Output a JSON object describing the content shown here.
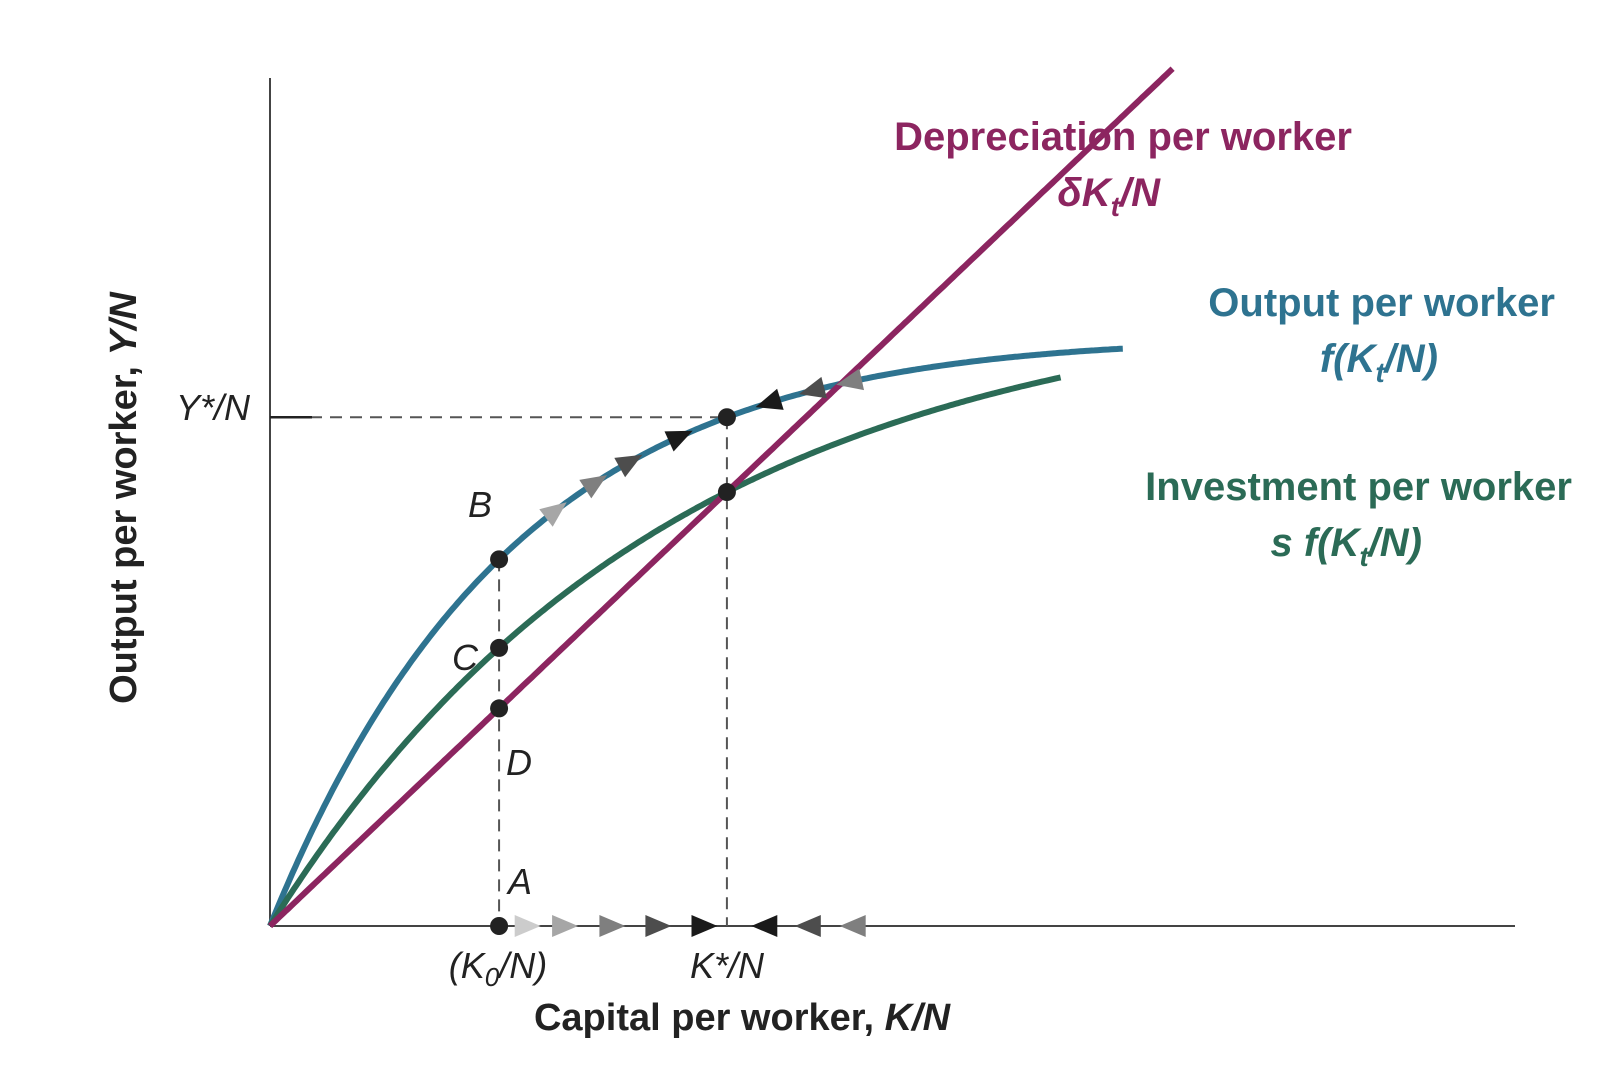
{
  "colors": {
    "output": "#2e7390",
    "investment": "#2b6b56",
    "depreciation": "#8c2560",
    "axis": "#444444",
    "point": "#222222",
    "arrow_shades": [
      "#cccccc",
      "#a6a6a6",
      "#7f7f7f",
      "#4d4d4d",
      "#1a1a1a"
    ]
  },
  "chart_data": {
    "type": "line",
    "xlim": [
      0,
      1
    ],
    "ylim": [
      0,
      1
    ],
    "axes": {
      "xlabel_text": "Capital per worker, ",
      "xlabel_var": "K/N",
      "ylabel_text": "Output per worker, ",
      "ylabel_var": "Y/N"
    },
    "series": [
      {
        "key": "output",
        "name_line1": "Output per worker",
        "name_line2_pre": "f(K",
        "name_line2_sub": "t",
        "name_line2_post": "/N)",
        "func": "output"
      },
      {
        "key": "investment",
        "name_line1": "Investment per worker",
        "name_line2_pre": "s f(K",
        "name_line2_sub": "t",
        "name_line2_post": "/N)",
        "func": "investment"
      },
      {
        "key": "depreciation",
        "name_line1": "Depreciation per worker",
        "name_line2_pre": "δK",
        "name_line2_sub": "t",
        "name_line2_post": "/N",
        "func": "depreciation"
      }
    ],
    "x_ticks": {
      "k0_pre": "(K",
      "k0_sub": "0",
      "k0_post": "/N)",
      "k0_value": 0.184,
      "kstar_label": "K*/N",
      "kstar_value": 0.367
    },
    "y_ticks": {
      "ystar_label": "Y*/N",
      "ystar_value": 0.6
    },
    "points": [
      {
        "label": "A",
        "x": 0.184,
        "series": "axis"
      },
      {
        "label": "B",
        "x": 0.184,
        "series": "output"
      },
      {
        "label": "C",
        "x": 0.184,
        "series": "investment"
      },
      {
        "label": "D",
        "x": 0.184,
        "series": "depreciation"
      }
    ],
    "arrows_right_x": [
      0.207,
      0.237,
      0.275,
      0.312,
      0.349
    ],
    "arrows_left_x": [
      0.397,
      0.432,
      0.468
    ],
    "curve_arrows_right_x": [
      0.23,
      0.262,
      0.29,
      0.33
    ],
    "curve_arrows_left_x": [
      0.4,
      0.435,
      0.465
    ]
  }
}
